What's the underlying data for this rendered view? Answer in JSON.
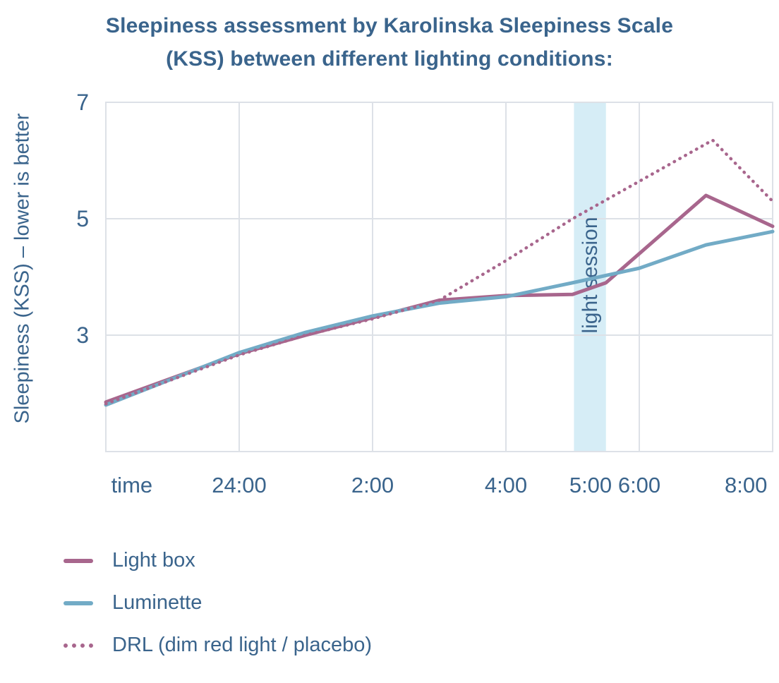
{
  "chart_data": {
    "type": "line",
    "title": "Sleepiness assessment by Karolinska Sleepiness Scale\n(KSS) between different lighting conditions:",
    "ylabel": "Sleepiness (KSS) – lower is better",
    "xlabel": "time",
    "x_unit": "hours since 22:00",
    "xlim": [
      0,
      10
    ],
    "ylim": [
      1,
      7
    ],
    "grid": true,
    "legend_position": "bottom-left",
    "yticks": [
      {
        "value": 7,
        "label": "7"
      },
      {
        "value": 5,
        "label": "5"
      },
      {
        "value": 3,
        "label": "3"
      }
    ],
    "x_gridlines": [
      0,
      2,
      4,
      6,
      8,
      10
    ],
    "xticks": [
      {
        "t": 0.39,
        "label": "time"
      },
      {
        "t": 2,
        "label": "24:00"
      },
      {
        "t": 4,
        "label": "2:00"
      },
      {
        "t": 6,
        "label": "4:00"
      },
      {
        "t": 7.27,
        "label": "5:00"
      },
      {
        "t": 8,
        "label": "6:00"
      },
      {
        "t": 9.6,
        "label": "8:00"
      }
    ],
    "light_session_band": {
      "from": 7.02,
      "to": 7.5,
      "label": "light session"
    },
    "series": [
      {
        "name": "Light box",
        "style": "solid",
        "color": "#a8668d",
        "points": [
          [
            0,
            1.85
          ],
          [
            2,
            2.68
          ],
          [
            3,
            3.0
          ],
          [
            4,
            3.3
          ],
          [
            5,
            3.6
          ],
          [
            6,
            3.68
          ],
          [
            7,
            3.7
          ],
          [
            7.5,
            3.9
          ],
          [
            9,
            5.4
          ],
          [
            10,
            4.87
          ]
        ]
      },
      {
        "name": "Luminette",
        "style": "solid",
        "color": "#72abc6",
        "points": [
          [
            0,
            1.8
          ],
          [
            2,
            2.7
          ],
          [
            3,
            3.05
          ],
          [
            4,
            3.33
          ],
          [
            5,
            3.55
          ],
          [
            6,
            3.66
          ],
          [
            7,
            3.9
          ],
          [
            8,
            4.15
          ],
          [
            9,
            4.55
          ],
          [
            10,
            4.78
          ]
        ]
      },
      {
        "name": "DRL (dim red light / placebo)",
        "style": "dotted",
        "color": "#a8668d",
        "points": [
          [
            0,
            1.82
          ],
          [
            2,
            2.66
          ],
          [
            3,
            3.0
          ],
          [
            4,
            3.28
          ],
          [
            5,
            3.6
          ],
          [
            6,
            4.28
          ],
          [
            7,
            5.0
          ],
          [
            9.1,
            6.35
          ],
          [
            10,
            5.3
          ]
        ]
      }
    ],
    "colors": {
      "text": "#3a648c",
      "grid": "#dde1e7",
      "band": "#d6edf6"
    }
  }
}
